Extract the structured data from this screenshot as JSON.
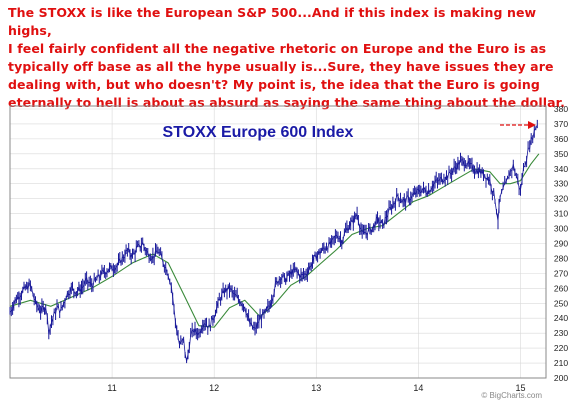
{
  "commentary": {
    "lines": [
      "The STOXX is like the European S&P 500...And if this index is making new highs,",
      "I feel fairly confident all the negative rhetoric on Europe and the Euro is as",
      "typically off base as all the hype usually is...Sure, they have issues they are",
      "dealing with, but who doesn't? My point is, the idea that the Euro is going",
      "eternally to hell is about as absurd as saying the same thing about the dollar."
    ]
  },
  "colors": {
    "commentary_text": "#e01010",
    "title_text": "#1a1aa6",
    "price_series": "#1a1a9a",
    "moving_average": "#3a8a3a",
    "arrow": "#e01010",
    "gridline": "#d9d9d9",
    "frame": "#8a8a8a"
  },
  "chart_data": {
    "type": "line",
    "title": "STOXX Europe 600 Index",
    "watermark": "© BigCharts.com",
    "x_tick_labels": [
      "11",
      "12",
      "13",
      "14",
      "15"
    ],
    "y_ticks": [
      200,
      210,
      220,
      230,
      240,
      250,
      260,
      270,
      280,
      290,
      300,
      310,
      320,
      330,
      340,
      350,
      360,
      370,
      380
    ],
    "ylim": [
      200,
      382
    ],
    "xlim": [
      2010.0,
      2015.25
    ],
    "grid": true,
    "annotation": "red dashed arrow pointing to new high",
    "series": [
      {
        "kind": "price",
        "x": [
          2010.0,
          2010.05,
          2010.1,
          2010.15,
          2010.2,
          2010.25,
          2010.3,
          2010.35,
          2010.38,
          2010.42,
          2010.46,
          2010.5,
          2010.55,
          2010.6,
          2010.65,
          2010.7,
          2010.75,
          2010.8,
          2010.85,
          2010.9,
          2010.95,
          2011.0,
          2011.05,
          2011.1,
          2011.15,
          2011.2,
          2011.25,
          2011.3,
          2011.35,
          2011.4,
          2011.45,
          2011.5,
          2011.55,
          2011.58,
          2011.62,
          2011.66,
          2011.7,
          2011.73,
          2011.77,
          2011.8,
          2011.85,
          2011.9,
          2011.95,
          2012.0,
          2012.05,
          2012.1,
          2012.15,
          2012.2,
          2012.25,
          2012.3,
          2012.35,
          2012.4,
          2012.45,
          2012.5,
          2012.55,
          2012.6,
          2012.65,
          2012.7,
          2012.75,
          2012.8,
          2012.85,
          2012.9,
          2012.95,
          2013.0,
          2013.05,
          2013.1,
          2013.15,
          2013.2,
          2013.25,
          2013.3,
          2013.35,
          2013.4,
          2013.45,
          2013.5,
          2013.55,
          2013.6,
          2013.65,
          2013.7,
          2013.75,
          2013.8,
          2013.85,
          2013.9,
          2013.95,
          2014.0,
          2014.05,
          2014.1,
          2014.15,
          2014.2,
          2014.25,
          2014.3,
          2014.35,
          2014.4,
          2014.45,
          2014.5,
          2014.55,
          2014.6,
          2014.65,
          2014.7,
          2014.75,
          2014.78,
          2014.8,
          2014.83,
          2014.86,
          2014.9,
          2014.93,
          2014.96,
          2015.0,
          2015.03,
          2015.06,
          2015.09,
          2015.12,
          2015.15,
          2015.18
        ],
        "values": [
          244,
          252,
          256,
          260,
          262,
          250,
          245,
          248,
          232,
          240,
          247,
          245,
          255,
          260,
          258,
          260,
          265,
          262,
          266,
          270,
          272,
          274,
          275,
          280,
          285,
          282,
          287,
          290,
          283,
          281,
          285,
          278,
          270,
          262,
          238,
          222,
          225,
          210,
          228,
          232,
          230,
          238,
          234,
          242,
          252,
          258,
          260,
          255,
          252,
          248,
          236,
          232,
          240,
          243,
          250,
          262,
          268,
          266,
          270,
          272,
          268,
          270,
          276,
          282,
          285,
          288,
          290,
          296,
          292,
          300,
          304,
          310,
          296,
          298,
          300,
          306,
          302,
          310,
          316,
          322,
          318,
          320,
          322,
          325,
          326,
          325,
          330,
          332,
          334,
          336,
          340,
          344,
          345,
          342,
          340,
          338,
          336,
          332,
          320,
          306,
          320,
          326,
          330,
          338,
          342,
          335,
          325,
          340,
          348,
          356,
          362,
          368,
          372
        ]
      },
      {
        "kind": "moving_average",
        "x": [
          2010.0,
          2010.2,
          2010.4,
          2010.6,
          2010.8,
          2011.0,
          2011.2,
          2011.4,
          2011.55,
          2011.7,
          2011.85,
          2012.0,
          2012.15,
          2012.3,
          2012.45,
          2012.6,
          2012.75,
          2012.9,
          2013.05,
          2013.2,
          2013.35,
          2013.5,
          2013.65,
          2013.8,
          2013.95,
          2014.1,
          2014.25,
          2014.4,
          2014.55,
          2014.7,
          2014.8,
          2014.9,
          2015.0,
          2015.1,
          2015.18
        ],
        "values": [
          248,
          252,
          248,
          254,
          260,
          268,
          277,
          283,
          277,
          256,
          235,
          234,
          247,
          252,
          241,
          250,
          262,
          268,
          277,
          286,
          296,
          300,
          302,
          310,
          318,
          322,
          328,
          334,
          340,
          338,
          330,
          330,
          332,
          343,
          350
        ]
      }
    ]
  }
}
